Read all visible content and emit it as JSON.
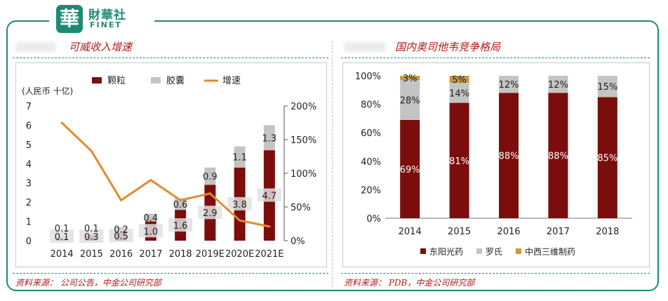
{
  "header": {
    "logo_cn": "財華社",
    "logo_en": "FINET",
    "logo_seal": "華"
  },
  "colors": {
    "granule": "#7b0d0d",
    "capsule": "#c4c4c4",
    "growth": "#e68a2e",
    "rohto": "#7b0d0d",
    "roche": "#c4c4c4",
    "zxsw": "#c89644",
    "brand": "#1f8a73",
    "title": "#b3171b"
  },
  "left": {
    "title": "可威收入增速",
    "source": "资料来源：  公司公告，中金公司研究部",
    "chart_data": {
      "type": "bar",
      "stacked": true,
      "unit_label": "(人民币 十亿)",
      "categories": [
        "2014",
        "2015",
        "2016",
        "2017",
        "2018",
        "2019E",
        "2020E",
        "2021E"
      ],
      "series": [
        {
          "name": "颗粒",
          "values": [
            0.1,
            0.3,
            0.5,
            1.0,
            1.6,
            2.9,
            3.8,
            4.7
          ]
        },
        {
          "name": "胶囊",
          "values": [
            0.1,
            0.1,
            0.2,
            0.4,
            0.6,
            0.9,
            1.1,
            1.3
          ]
        }
      ],
      "line": {
        "name": "增速",
        "values": [
          175,
          133,
          60,
          90,
          60,
          70,
          30,
          21
        ]
      },
      "ylim": [
        0,
        7
      ],
      "y_ticks": [
        "0",
        "1",
        "2",
        "3",
        "4",
        "5",
        "6",
        "7"
      ],
      "y2lim": [
        0,
        200
      ],
      "y2_ticks": [
        "0%",
        "50%",
        "100%",
        "150%",
        "200%"
      ]
    }
  },
  "right": {
    "title": "国内奥司他韦竞争格局",
    "source": "资料来源：  PDB，中金公司研究部",
    "chart_data": {
      "type": "bar",
      "stacked": true,
      "categories": [
        "2014",
        "2015",
        "2016",
        "2017",
        "2018"
      ],
      "series": [
        {
          "name": "东阳光药",
          "values": [
            69,
            81,
            88,
            88,
            85
          ],
          "labels": [
            "69%",
            "81%",
            "88%",
            "88%",
            "85%"
          ]
        },
        {
          "name": "罗氏",
          "values": [
            28,
            14,
            12,
            12,
            15
          ],
          "labels": [
            "28%",
            "14%",
            "12%",
            "12%",
            "15%"
          ]
        },
        {
          "name": "中西三维制药",
          "values": [
            3,
            5,
            0,
            0,
            0
          ],
          "labels": [
            "3%",
            "5%",
            "",
            "",
            ""
          ]
        }
      ],
      "ylim": [
        0,
        100
      ],
      "y_ticks": [
        "0%",
        "20%",
        "40%",
        "60%",
        "80%",
        "100%"
      ]
    }
  }
}
